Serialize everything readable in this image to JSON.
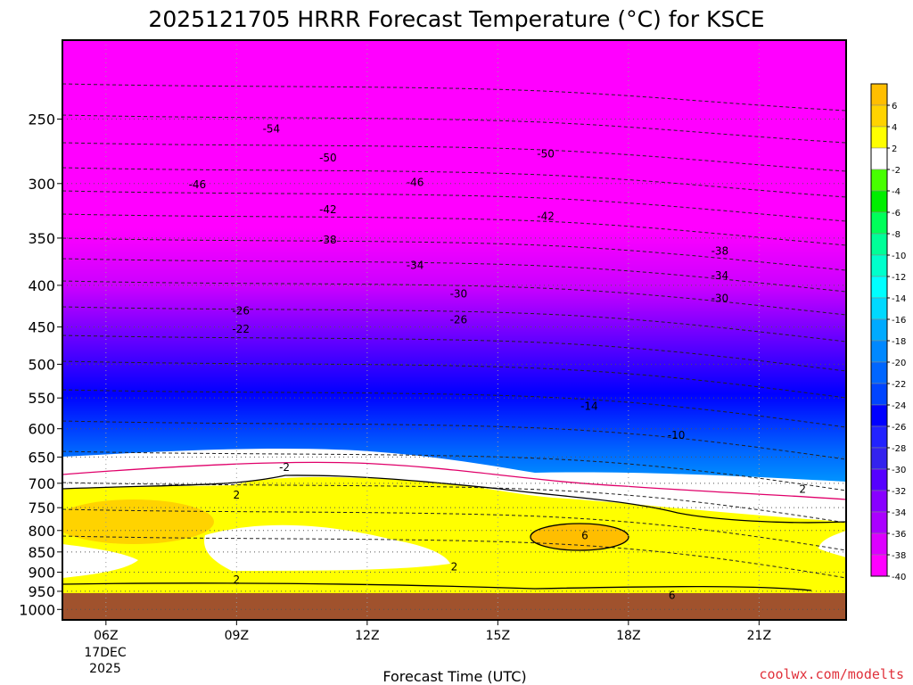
{
  "chart_data": {
    "type": "heatmap",
    "title": "2025121705 HRRR Forecast Temperature (°C) for KSCE",
    "xlabel": "Forecast Time (UTC)",
    "ylabel": "",
    "y_scale": "log",
    "y_inverted": true,
    "y_ticks": [
      250,
      300,
      350,
      400,
      450,
      500,
      550,
      600,
      650,
      700,
      750,
      800,
      850,
      900,
      950,
      1000
    ],
    "x_ticks": [
      "06Z",
      "09Z",
      "12Z",
      "15Z",
      "18Z",
      "21Z"
    ],
    "x_ticks_hours": [
      6,
      9,
      12,
      15,
      18,
      21
    ],
    "date_label": [
      "17DEC",
      "2025"
    ],
    "x_range_hours": [
      5,
      23
    ],
    "y_range_hpa": [
      200,
      1030
    ],
    "grid": true,
    "colorbar": {
      "placement": "right",
      "labels": [
        "6",
        "4",
        "2",
        "-2",
        "-4",
        "-6",
        "-8",
        "-10",
        "-12",
        "-14",
        "-16",
        "-18",
        "-20",
        "-22",
        "-24",
        "-26",
        "-28",
        "-30",
        "-32",
        "-34",
        "-36",
        "-38",
        "-40"
      ],
      "colors": [
        "#ffbe00",
        "#ffd300",
        "#ffff00",
        "#ffffff",
        "#47ff00",
        "#00ee00",
        "#00ff5a",
        "#00ff98",
        "#00ffcc",
        "#00ffff",
        "#00d9ff",
        "#00aaff",
        "#0088ff",
        "#0066ff",
        "#0044ff",
        "#0000ff",
        "#2222ff",
        "#3322ee",
        "#5500ff",
        "#8800ff",
        "#aa00ff",
        "#dd00ff",
        "#ff00ff"
      ]
    },
    "contour_labels": [
      {
        "text": "-54",
        "hour": 9.8,
        "hpa": 257
      },
      {
        "text": "-50",
        "hour": 11.1,
        "hpa": 279
      },
      {
        "text": "-50",
        "hour": 16.1,
        "hpa": 276
      },
      {
        "text": "-46",
        "hour": 8.1,
        "hpa": 301
      },
      {
        "text": "-46",
        "hour": 13.1,
        "hpa": 299
      },
      {
        "text": "-42",
        "hour": 11.1,
        "hpa": 323
      },
      {
        "text": "-42",
        "hour": 16.1,
        "hpa": 329
      },
      {
        "text": "-38",
        "hour": 11.1,
        "hpa": 352
      },
      {
        "text": "-38",
        "hour": 20.1,
        "hpa": 363
      },
      {
        "text": "-34",
        "hour": 13.1,
        "hpa": 378
      },
      {
        "text": "-34",
        "hour": 20.1,
        "hpa": 389
      },
      {
        "text": "-30",
        "hour": 14.1,
        "hpa": 410
      },
      {
        "text": "-30",
        "hour": 20.1,
        "hpa": 415
      },
      {
        "text": "-26",
        "hour": 9.1,
        "hpa": 430
      },
      {
        "text": "-26",
        "hour": 14.1,
        "hpa": 441
      },
      {
        "text": "-22",
        "hour": 9.1,
        "hpa": 453
      },
      {
        "text": "-14",
        "hour": 17.1,
        "hpa": 563
      },
      {
        "text": "-10",
        "hour": 19.1,
        "hpa": 611
      },
      {
        "text": "-2",
        "hour": 10.1,
        "hpa": 669
      },
      {
        "text": "2",
        "hour": 9.0,
        "hpa": 724
      },
      {
        "text": "2",
        "hour": 22.0,
        "hpa": 712
      },
      {
        "text": "6",
        "hour": 17.0,
        "hpa": 812
      },
      {
        "text": "2",
        "hour": 14.0,
        "hpa": 887
      },
      {
        "text": "2",
        "hour": 9.0,
        "hpa": 920
      },
      {
        "text": "6",
        "hour": 19.0,
        "hpa": 961
      }
    ]
  },
  "credit": "coolwx.com/modelts"
}
